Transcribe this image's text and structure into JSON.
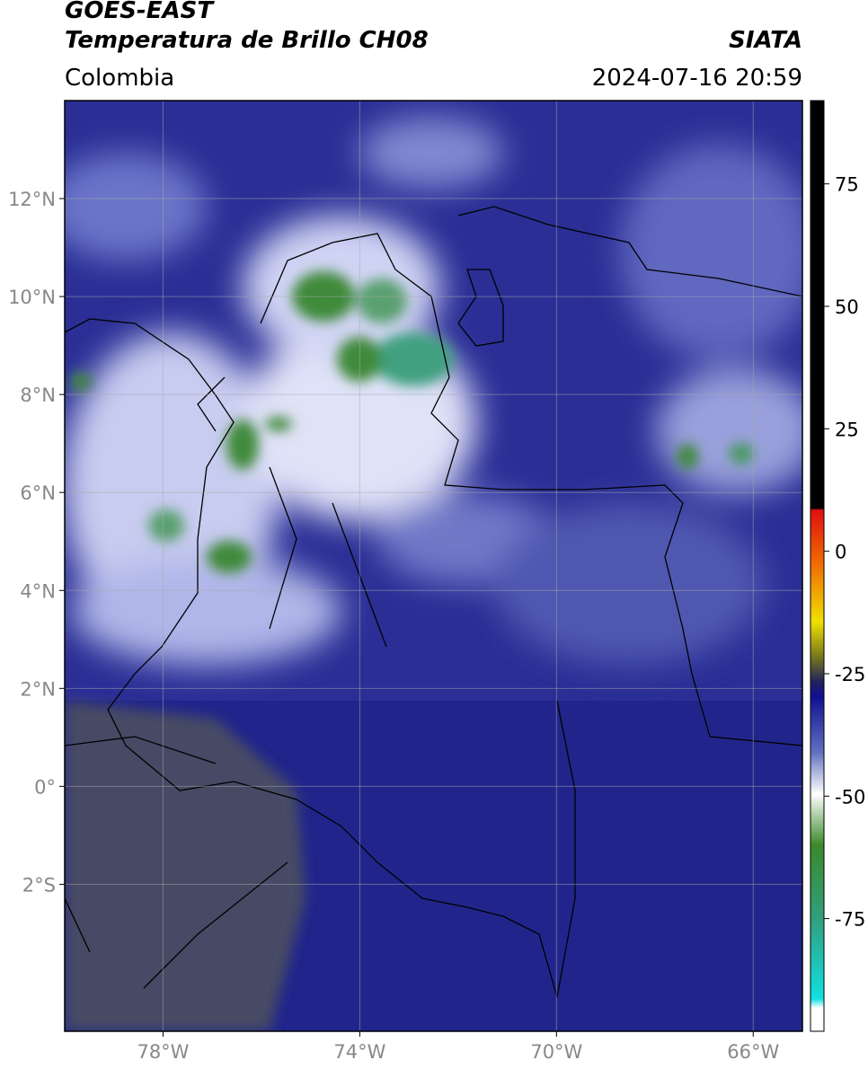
{
  "header": {
    "title": "GOES-EAST",
    "subtitle": "Temperatura de Brillo CH08",
    "region": "Colombia",
    "source": "SIATA",
    "datetime": "2024-07-16 20:59"
  },
  "map": {
    "xlim": [
      -80,
      -65
    ],
    "ylim": [
      -5,
      14
    ],
    "xticks": [
      {
        "value": -78,
        "label": "78°W"
      },
      {
        "value": -74,
        "label": "74°W"
      },
      {
        "value": -70,
        "label": "70°W"
      },
      {
        "value": -66,
        "label": "66°W"
      }
    ],
    "yticks": [
      {
        "value": 12,
        "label": "12°N"
      },
      {
        "value": 10,
        "label": "10°N"
      },
      {
        "value": 8,
        "label": "8°N"
      },
      {
        "value": 6,
        "label": "6°N"
      },
      {
        "value": 4,
        "label": "4°N"
      },
      {
        "value": 2,
        "label": "2°N"
      },
      {
        "value": 0,
        "label": "0°"
      },
      {
        "value": -2,
        "label": "2°S"
      }
    ],
    "grid": true
  },
  "colorbar": {
    "lim": [
      -98,
      92
    ],
    "ticks": [
      75,
      50,
      25,
      0,
      -25,
      -50,
      -75
    ]
  }
}
